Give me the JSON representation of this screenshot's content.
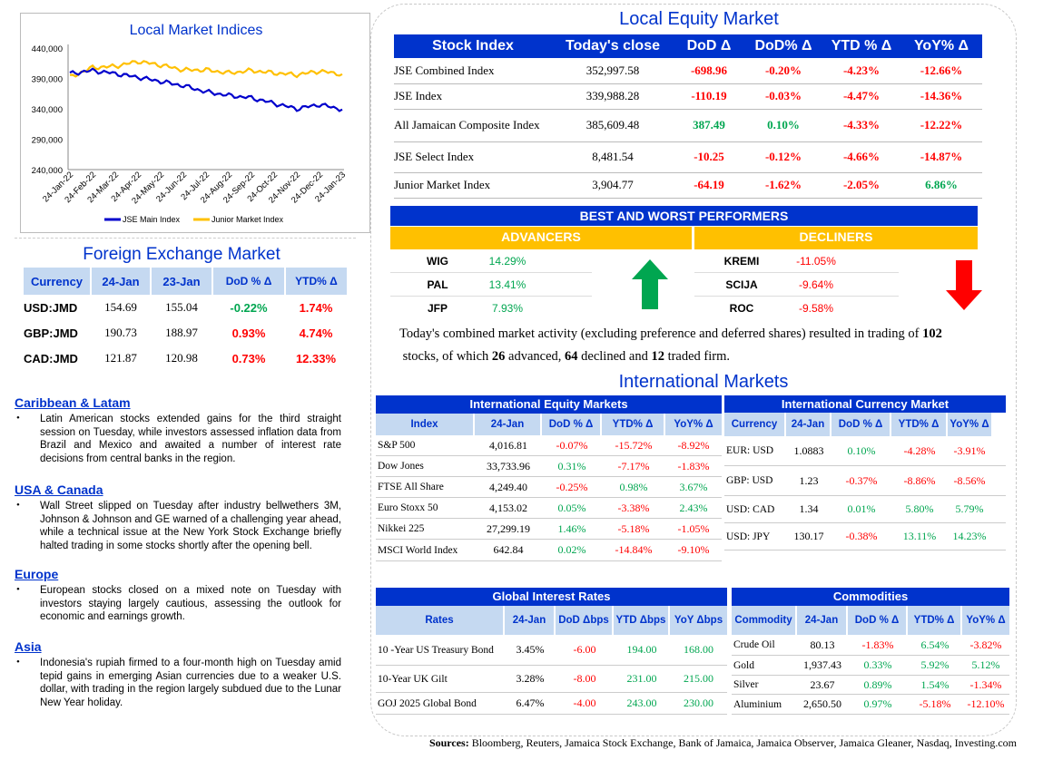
{
  "chart": {
    "title": "Local Market Indices",
    "legend": [
      "JSE Main Index",
      "Junior Market Index"
    ]
  },
  "chart_data": {
    "type": "line",
    "title": "Local Market Indices",
    "x": [
      "24-Jan-22",
      "24-Feb-22",
      "24-Mar-22",
      "24-Apr-22",
      "24-May-22",
      "24-Jun-22",
      "24-Jul-22",
      "24-Aug-22",
      "24-Sep-22",
      "24-Oct-22",
      "24-Nov-22",
      "24-Dec-22",
      "24-Jan-23"
    ],
    "yticks": [
      "440,000",
      "390,000",
      "340,000",
      "290,000",
      "240,000"
    ],
    "ylim": [
      240000,
      440000
    ],
    "series": [
      {
        "name": "JSE Main Index",
        "color": "#0000cc",
        "values": [
          398000,
          403000,
          398000,
          392000,
          385000,
          378000,
          368000,
          362000,
          358000,
          349000,
          340000,
          347000,
          339000
        ]
      },
      {
        "name": "Junior Market Index",
        "color": "#ffc000",
        "values": [
          392000,
          408000,
          410000,
          418000,
          412000,
          404000,
          404000,
          399000,
          403000,
          399000,
          396000,
          402000,
          397000
        ]
      }
    ],
    "grid": false,
    "legend_position": "bottom"
  },
  "local_equity": {
    "title": "Local Equity Market",
    "headers": [
      "Stock Index",
      "Today's close",
      "DoD  Δ",
      "DoD% Δ",
      "YTD % Δ",
      "YoY% Δ"
    ],
    "rows": [
      {
        "name": "JSE Combined Index",
        "close": "352,997.58",
        "dod": "-698.96",
        "dodp": "-0.20%",
        "ytd": "-4.23%",
        "yoy": "-12.66%",
        "c": [
          "neg",
          "neg",
          "neg",
          "neg"
        ]
      },
      {
        "name": "JSE Index",
        "close": "339,988.28",
        "dod": "-110.19",
        "dodp": "-0.03%",
        "ytd": "-4.47%",
        "yoy": "-14.36%",
        "c": [
          "neg",
          "neg",
          "neg",
          "neg"
        ]
      },
      {
        "name": "All Jamaican Composite Index",
        "close": "385,609.48",
        "dod": "387.49",
        "dodp": "0.10%",
        "ytd": "-4.33%",
        "yoy": "-12.22%",
        "c": [
          "pos",
          "pos",
          "neg",
          "neg"
        ]
      },
      {
        "name": "JSE Select Index",
        "close": "8,481.54",
        "dod": "-10.25",
        "dodp": "-0.12%",
        "ytd": "-4.66%",
        "yoy": "-14.87%",
        "c": [
          "neg",
          "neg",
          "neg",
          "neg"
        ]
      },
      {
        "name": "Junior Market Index",
        "close": "3,904.77",
        "dod": "-64.19",
        "dodp": "-1.62%",
        "ytd": "-2.05%",
        "yoy": "6.86%",
        "c": [
          "neg",
          "neg",
          "neg",
          "pos"
        ]
      }
    ]
  },
  "performers": {
    "title": "BEST AND WORST PERFORMERS",
    "adv_label": "ADVANCERS",
    "dec_label": "DECLINERS",
    "advancers": [
      {
        "sym": "WIG",
        "val": "14.29%"
      },
      {
        "sym": "PAL",
        "val": "13.41%"
      },
      {
        "sym": "JFP",
        "val": "7.93%"
      }
    ],
    "decliners": [
      {
        "sym": "KREMI",
        "val": "-11.05%"
      },
      {
        "sym": "SCIJA",
        "val": "-9.64%"
      },
      {
        "sym": "ROC",
        "val": "-9.58%"
      }
    ],
    "summary_1": "Today's combined market activity (excluding preference and deferred shares) resulted in trading of",
    "summary_n1": "102",
    "summary_2": "stocks, of which",
    "summary_n2": "26",
    "summary_3": "advanced,",
    "summary_n3": "64",
    "summary_4": "declined and",
    "summary_n4": "12",
    "summary_5": "traded firm."
  },
  "fx": {
    "title": "Foreign Exchange Market",
    "headers": [
      "Currency",
      "24-Jan",
      "23-Jan",
      "DoD % Δ",
      "YTD% Δ"
    ],
    "rows": [
      {
        "cur": "USD:JMD",
        "a": "154.69",
        "b": "155.04",
        "dod": "-0.22%",
        "ytd": "1.74%",
        "c": [
          "pos",
          "neg"
        ]
      },
      {
        "cur": "GBP:JMD",
        "a": "190.73",
        "b": "188.97",
        "dod": "0.93%",
        "ytd": "4.74%",
        "c": [
          "neg",
          "neg"
        ]
      },
      {
        "cur": "CAD:JMD",
        "a": "121.87",
        "b": "120.98",
        "dod": "0.73%",
        "ytd": "12.33%",
        "c": [
          "neg",
          "neg"
        ]
      }
    ]
  },
  "news": [
    {
      "heading": "Caribbean & Latam",
      "text": "Latin American stocks extended gains for the third straight session on Tuesday, while investors assessed inflation data from Brazil and Mexico and awaited a number of interest rate decisions from central banks in the region."
    },
    {
      "heading": "USA & Canada",
      "text": "Wall Street slipped on Tuesday after industry bellwethers 3M, Johnson & Johnson and GE warned of a challenging year ahead, while a technical issue at the New York Stock Exchange briefly halted trading in some stocks shortly after the opening bell."
    },
    {
      "heading": "Europe",
      "text": "European stocks closed on a mixed note on Tuesday with investors staying largely cautious, assessing the outlook for economic and earnings growth."
    },
    {
      "heading": "Asia",
      "text": "Indonesia's rupiah firmed to a four-month high on Tuesday amid tepid gains in emerging Asian currencies due to a weaker U.S. dollar, with trading in the region largely subdued due to the Lunar New Year holiday."
    }
  ],
  "intl": {
    "title": "International Markets",
    "equity": {
      "title": "International Equity Markets",
      "headers": [
        "Index",
        "24-Jan",
        "DoD % Δ",
        "YTD% Δ",
        "YoY% Δ"
      ],
      "rows": [
        {
          "name": "S&P 500",
          "v": "4,016.81",
          "d": "-0.07%",
          "y": "-15.72%",
          "yy": "-8.92%",
          "c": [
            "neg",
            "neg",
            "neg"
          ]
        },
        {
          "name": "Dow Jones",
          "v": "33,733.96",
          "d": "0.31%",
          "y": "-7.17%",
          "yy": "-1.83%",
          "c": [
            "pos",
            "neg",
            "neg"
          ]
        },
        {
          "name": "FTSE All Share",
          "v": "4,249.40",
          "d": "-0.25%",
          "y": "0.98%",
          "yy": "3.67%",
          "c": [
            "neg",
            "pos",
            "pos"
          ]
        },
        {
          "name": "Euro Stoxx 50",
          "v": "4,153.02",
          "d": "0.05%",
          "y": "-3.38%",
          "yy": "2.43%",
          "c": [
            "pos",
            "neg",
            "pos"
          ]
        },
        {
          "name": "Nikkei 225",
          "v": "27,299.19",
          "d": "1.46%",
          "y": "-5.18%",
          "yy": "-1.05%",
          "c": [
            "pos",
            "neg",
            "neg"
          ]
        },
        {
          "name": "MSCI World Index",
          "v": "642.84",
          "d": "0.02%",
          "y": "-14.84%",
          "yy": "-9.10%",
          "c": [
            "pos",
            "neg",
            "neg"
          ]
        }
      ]
    },
    "currency": {
      "title": "International Currency Market",
      "headers": [
        "Currency",
        "24-Jan",
        "DoD % Δ",
        "YTD% Δ",
        "YoY% Δ"
      ],
      "rows": [
        {
          "name": "EUR: USD",
          "v": "1.0883",
          "d": "0.10%",
          "y": "-4.28%",
          "yy": "-3.91%",
          "c": [
            "pos",
            "neg",
            "neg"
          ]
        },
        {
          "name": "GBP: USD",
          "v": "1.23",
          "d": "-0.37%",
          "y": "-8.86%",
          "yy": "-8.56%",
          "c": [
            "neg",
            "neg",
            "neg"
          ]
        },
        {
          "name": "USD: CAD",
          "v": "1.34",
          "d": "0.01%",
          "y": "5.80%",
          "yy": "5.79%",
          "c": [
            "pos",
            "pos",
            "pos"
          ]
        },
        {
          "name": "USD: JPY",
          "v": "130.17",
          "d": "-0.38%",
          "y": "13.11%",
          "yy": "14.23%",
          "c": [
            "neg",
            "pos",
            "pos"
          ]
        }
      ]
    },
    "rates": {
      "title": "Global Interest Rates",
      "headers": [
        "Rates",
        "24-Jan",
        "DoD Δbps",
        "YTD Δbps",
        "YoY Δbps"
      ],
      "rows": [
        {
          "name": "10 -Year US Treasury Bond",
          "v": "3.45%",
          "d": "-6.00",
          "y": "194.00",
          "yy": "168.00",
          "c": [
            "neg",
            "pos",
            "pos"
          ]
        },
        {
          "name": "10-Year UK Gilt",
          "v": "3.28%",
          "d": "-8.00",
          "y": "231.00",
          "yy": "215.00",
          "c": [
            "neg",
            "pos",
            "pos"
          ]
        },
        {
          "name": "GOJ 2025 Global Bond",
          "v": "6.47%",
          "d": "-4.00",
          "y": "243.00",
          "yy": "230.00",
          "c": [
            "neg",
            "pos",
            "pos"
          ]
        }
      ]
    },
    "commodities": {
      "title": "Commodities",
      "headers": [
        "Commodity",
        "24-Jan",
        "DoD % Δ",
        "YTD% Δ",
        "YoY% Δ"
      ],
      "rows": [
        {
          "name": "Crude Oil",
          "v": "80.13",
          "d": "-1.83%",
          "y": "6.54%",
          "yy": "-3.82%",
          "c": [
            "neg",
            "pos",
            "neg"
          ]
        },
        {
          "name": "Gold",
          "v": "1,937.43",
          "d": "0.33%",
          "y": "5.92%",
          "yy": "5.12%",
          "c": [
            "pos",
            "pos",
            "pos"
          ]
        },
        {
          "name": "Silver",
          "v": "23.67",
          "d": "0.89%",
          "y": "1.54%",
          "yy": "-1.34%",
          "c": [
            "pos",
            "pos",
            "neg"
          ]
        },
        {
          "name": "Aluminium",
          "v": "2,650.50",
          "d": "0.97%",
          "y": "-5.18%",
          "yy": "-12.10%",
          "c": [
            "pos",
            "neg",
            "neg"
          ]
        }
      ]
    }
  },
  "sources_label": "Sources:",
  "sources_text": "Bloomberg, Reuters, Jamaica Stock Exchange, Bank of Jamaica, Jamaica Observer, Jamaica Gleaner, Nasdaq, Investing.com"
}
